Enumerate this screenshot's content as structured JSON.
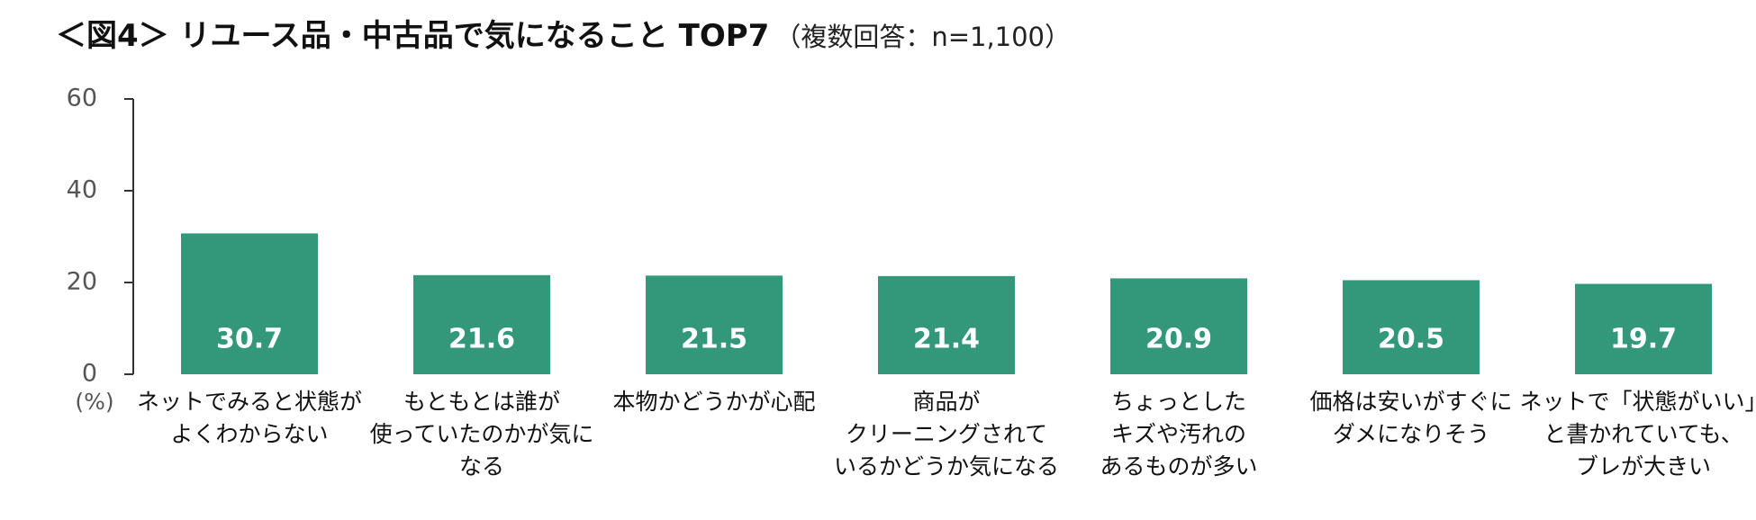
{
  "title": {
    "main": "＜図4＞ リユース品・中古品で気になること TOP7",
    "sub": "（複数回答：n=1,100）"
  },
  "colors": {
    "bar": "#33977A",
    "axis": "#333333",
    "tick_text": "#555555",
    "data_label": "#ffffff"
  },
  "chart_data": {
    "type": "bar",
    "title": "＜図4＞ リユース品・中古品で気になること TOP7",
    "subtitle": "（複数回答：n=1,100）",
    "ylabel": "(%)",
    "xlabel": "",
    "ylim": [
      0,
      60
    ],
    "yticks": [
      0,
      20,
      40,
      60
    ],
    "grid": false,
    "legend": "none",
    "categories": [
      [
        "ネットでみると状態が",
        "よくわからない"
      ],
      [
        "もともとは誰が",
        "使っていたのかが気に",
        "なる"
      ],
      [
        "本物かどうかが心配"
      ],
      [
        "商品が",
        "クリーニングされて",
        "いるかどうか気になる"
      ],
      [
        "ちょっとした",
        "キズや汚れの",
        "あるものが多い"
      ],
      [
        "価格は安いがすぐに",
        "ダメになりそう"
      ],
      [
        "ネットで「状態がいい」",
        "と書かれていても、",
        "ブレが大きい"
      ]
    ],
    "values": [
      30.7,
      21.6,
      21.5,
      21.4,
      20.9,
      20.5,
      19.7
    ],
    "data_labels": [
      "30.7",
      "21.6",
      "21.5",
      "21.4",
      "20.9",
      "20.5",
      "19.7"
    ]
  }
}
